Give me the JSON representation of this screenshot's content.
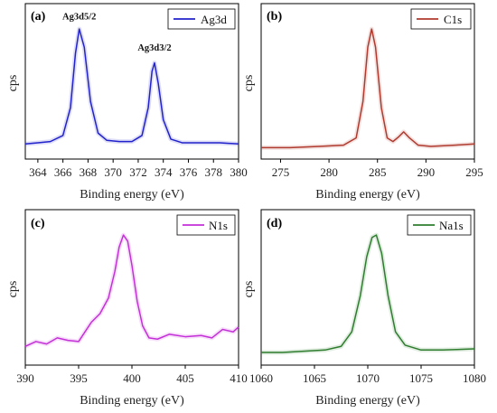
{
  "chart_data": [
    {
      "type": "line",
      "panel_label": "(a)",
      "ylabel": "cps",
      "xlabel": "Binding energy (eV)",
      "xlim": [
        363,
        380
      ],
      "ylim": [
        0,
        1.15
      ],
      "xticks": [
        364,
        366,
        368,
        370,
        372,
        374,
        376,
        378,
        380
      ],
      "legend": "top-right",
      "color": "#2222cc",
      "series": [
        {
          "name": "Ag3d",
          "x": [
            363.0,
            364.0,
            365.0,
            366.0,
            366.6,
            367.0,
            367.3,
            367.7,
            368.2,
            368.8,
            369.5,
            370.5,
            371.5,
            372.3,
            372.8,
            373.1,
            373.3,
            373.6,
            374.0,
            374.6,
            375.5,
            376.5,
            377.5,
            378.5,
            380.0
          ],
          "y": [
            0.05,
            0.06,
            0.07,
            0.12,
            0.35,
            0.8,
            1.0,
            0.85,
            0.4,
            0.14,
            0.08,
            0.07,
            0.07,
            0.12,
            0.35,
            0.65,
            0.72,
            0.55,
            0.25,
            0.09,
            0.06,
            0.06,
            0.06,
            0.06,
            0.05
          ]
        }
      ],
      "annotations": [
        {
          "text": "Ag3d5/2",
          "x": 367.3,
          "y": 1.08
        },
        {
          "text": "Ag3d3/2",
          "x": 373.3,
          "y": 0.82
        }
      ]
    },
    {
      "type": "line",
      "panel_label": "(b)",
      "ylabel": "cps",
      "xlabel": "Binding energy (eV)",
      "xlim": [
        273,
        295
      ],
      "ylim": [
        0,
        1.15
      ],
      "xticks": [
        275,
        280,
        285,
        290,
        295
      ],
      "legend": "top-right",
      "color": "#b03a2e",
      "series": [
        {
          "name": "C1s",
          "x": [
            273.0,
            276.0,
            279.0,
            281.5,
            282.8,
            283.5,
            284.0,
            284.4,
            284.8,
            285.4,
            286.0,
            286.6,
            287.2,
            287.7,
            288.3,
            289.2,
            290.5,
            293.0,
            295.0
          ],
          "y": [
            0.02,
            0.02,
            0.03,
            0.04,
            0.1,
            0.4,
            0.85,
            1.0,
            0.85,
            0.35,
            0.1,
            0.07,
            0.11,
            0.15,
            0.1,
            0.04,
            0.03,
            0.04,
            0.05
          ]
        }
      ]
    },
    {
      "type": "line",
      "panel_label": "(c)",
      "ylabel": "cps",
      "xlabel": "Binding energy (eV)",
      "xlim": [
        390,
        410
      ],
      "ylim": [
        0,
        1.15
      ],
      "xticks": [
        390,
        395,
        400,
        405,
        410
      ],
      "legend": "top-right",
      "color": "#c42fd8",
      "series": [
        {
          "name": "N1s",
          "x": [
            390.0,
            391.0,
            392.0,
            393.0,
            394.0,
            395.0,
            395.6,
            396.2,
            397.0,
            397.8,
            398.4,
            398.8,
            399.2,
            399.6,
            400.0,
            400.5,
            401.0,
            401.6,
            402.4,
            403.5,
            405.0,
            406.5,
            407.5,
            408.5,
            409.5,
            410.0
          ],
          "y": [
            0.08,
            0.12,
            0.1,
            0.15,
            0.13,
            0.12,
            0.2,
            0.28,
            0.35,
            0.48,
            0.7,
            0.9,
            1.0,
            0.95,
            0.75,
            0.45,
            0.25,
            0.15,
            0.14,
            0.18,
            0.16,
            0.17,
            0.15,
            0.22,
            0.2,
            0.24
          ]
        }
      ]
    },
    {
      "type": "line",
      "panel_label": "(d)",
      "ylabel": "cps",
      "xlabel": "Binding energy (eV)",
      "xlim": [
        1060,
        1080
      ],
      "ylim": [
        0,
        1.15
      ],
      "xticks": [
        1060,
        1065,
        1070,
        1075,
        1080
      ],
      "legend": "top-right",
      "color": "#2e7d2e",
      "series": [
        {
          "name": "Na1s",
          "x": [
            1060.0,
            1062.0,
            1064.0,
            1066.0,
            1067.5,
            1068.5,
            1069.3,
            1069.9,
            1070.4,
            1070.8,
            1071.3,
            1071.9,
            1072.6,
            1073.5,
            1075.0,
            1077.0,
            1080.0
          ],
          "y": [
            0.03,
            0.03,
            0.04,
            0.05,
            0.08,
            0.2,
            0.5,
            0.82,
            0.98,
            1.0,
            0.85,
            0.5,
            0.2,
            0.09,
            0.05,
            0.05,
            0.06
          ]
        }
      ]
    }
  ]
}
